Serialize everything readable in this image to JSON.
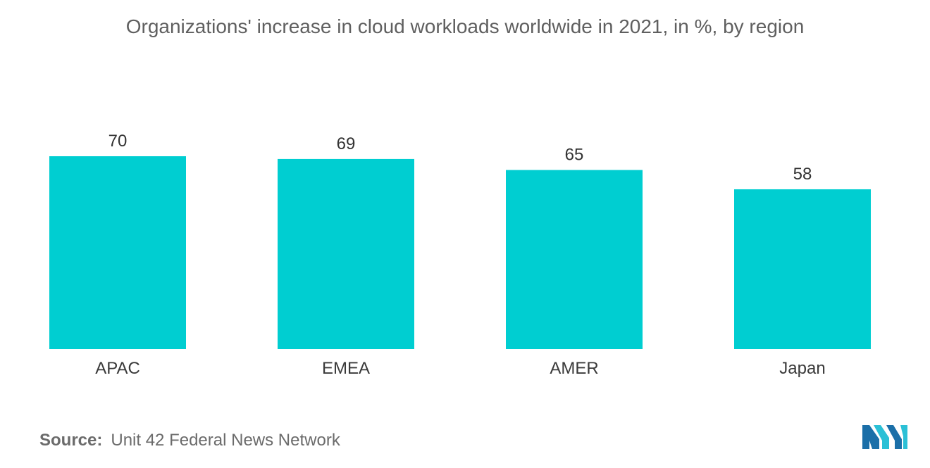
{
  "chart_data": {
    "type": "bar",
    "title": "Organizations' increase in cloud workloads worldwide in 2021, in %, by region",
    "categories": [
      "APAC",
      "EMEA",
      "AMER",
      "Japan"
    ],
    "values": [
      70,
      69,
      65,
      58
    ],
    "xlabel": "",
    "ylabel": "",
    "ylim": [
      0,
      70
    ],
    "grid": false,
    "show_data_labels": true,
    "bar_color": "#00ced1"
  },
  "source": {
    "label": "Source:",
    "text": "Unit 42 Federal News Network"
  },
  "logo": {
    "icon": "mordor-intelligence-logo",
    "colors": [
      "#1b6fa8",
      "#2bc0d6"
    ]
  }
}
